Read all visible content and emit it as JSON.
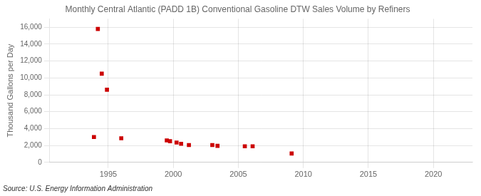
{
  "chart_data": {
    "type": "scatter",
    "title": "Monthly Central Atlantic (PADD 1B) Conventional Gasoline DTW Sales Volume by Refiners",
    "ylabel": "Thousand Gallons per Day",
    "annotation": "Source: U.S. Energy Information Administration",
    "x": [
      1993.9,
      1994.2,
      1994.5,
      1994.9,
      1996.0,
      1999.5,
      1999.75,
      2000.25,
      2000.6,
      2001.2,
      2003.0,
      2003.4,
      2005.5,
      2006.1,
      2009.1
    ],
    "values": [
      3000,
      15800,
      10500,
      8600,
      2850,
      2600,
      2500,
      2350,
      2200,
      2050,
      2050,
      1950,
      1900,
      1900,
      1050
    ],
    "color": "#cc0000",
    "marker": "square",
    "xlim": [
      1990.5,
      2023
    ],
    "xticks": [
      1995,
      2000,
      2005,
      2010,
      2015,
      2020
    ],
    "ylim": [
      0,
      17000
    ],
    "yticks": [
      0,
      {
        "value": 2000,
        "label": "2,000"
      },
      {
        "value": 4000,
        "label": "4,000"
      },
      {
        "value": 6000,
        "label": "6,000"
      },
      {
        "value": 8000,
        "label": "8,000"
      },
      {
        "value": 10000,
        "label": "10,000"
      },
      {
        "value": 12000,
        "label": "12,000"
      },
      {
        "value": 14000,
        "label": "14,000"
      },
      {
        "value": 16000,
        "label": "16,000"
      }
    ],
    "grid": true
  }
}
